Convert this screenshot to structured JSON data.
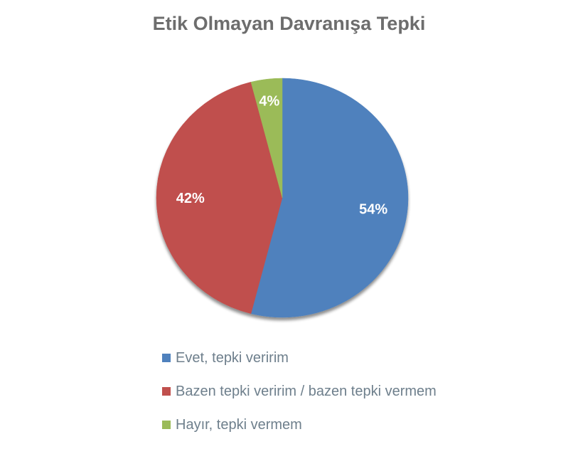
{
  "chart_data": {
    "type": "pie",
    "title": "Etik Olmayan Davranışa Tepki",
    "series": [
      {
        "name": "Evet, tepki veririm",
        "value": 54,
        "label": "54%",
        "color": "#4f81bd"
      },
      {
        "name": "Bazen tepki veririm / bazen tepki vermem",
        "value": 42,
        "label": "42%",
        "color": "#c0504d"
      },
      {
        "name": "Hayır, tepki vermem",
        "value": 4,
        "label": "4%",
        "color": "#9bbb59"
      }
    ],
    "legend_position": "bottom"
  }
}
